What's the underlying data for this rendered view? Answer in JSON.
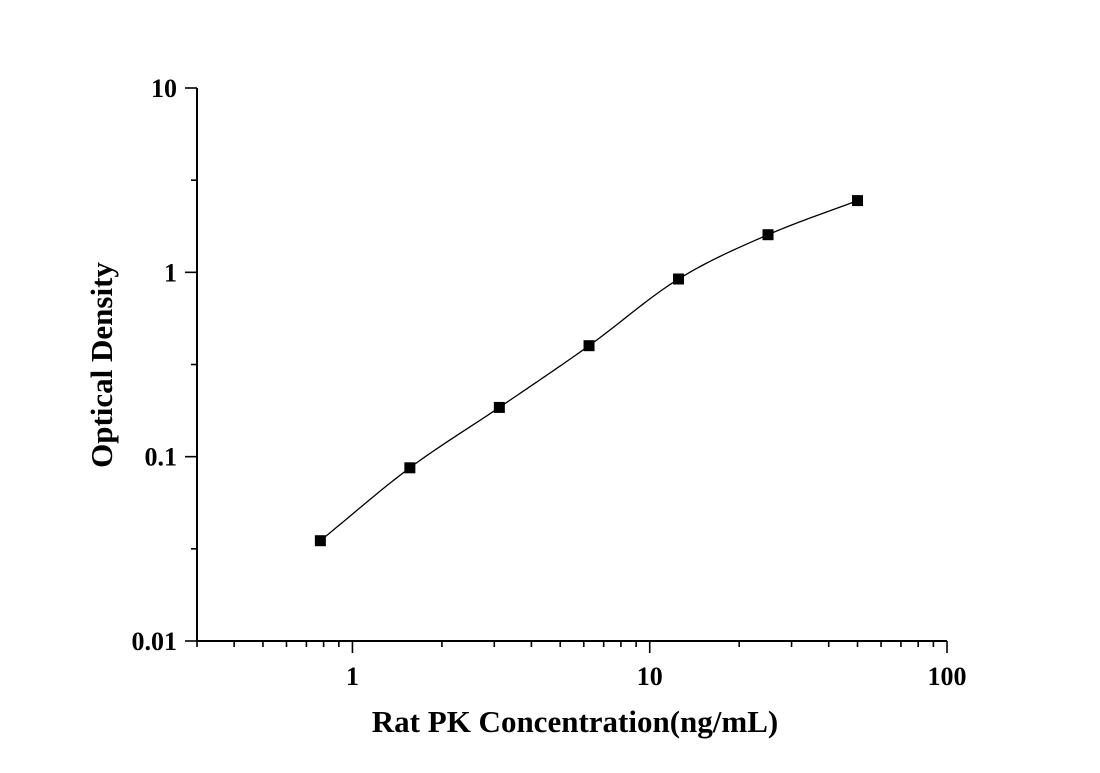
{
  "chart_data": {
    "type": "scatter",
    "title": "",
    "xlabel": "Rat PK Concentration(ng/mL)",
    "ylabel": "Optical Density",
    "x_scale": "log",
    "y_scale": "log",
    "xlim": [
      0.3,
      100
    ],
    "ylim": [
      0.01,
      10
    ],
    "x_ticks": [
      1,
      10,
      100
    ],
    "x_tick_labels": [
      "1",
      "10",
      "100"
    ],
    "y_ticks": [
      0.01,
      0.1,
      1,
      10
    ],
    "y_tick_labels": [
      "0.01",
      "0.1",
      "1",
      "10"
    ],
    "grid": false,
    "legend": "none",
    "marker": "square",
    "marker_color": "#000000",
    "line_color": "#000000",
    "series": [
      {
        "x": [
          0.78,
          1.56,
          3.12,
          6.25,
          12.5,
          25,
          50
        ],
        "y": [
          0.035,
          0.087,
          0.185,
          0.4,
          0.92,
          1.6,
          2.45
        ],
        "fit_line": true
      }
    ]
  }
}
